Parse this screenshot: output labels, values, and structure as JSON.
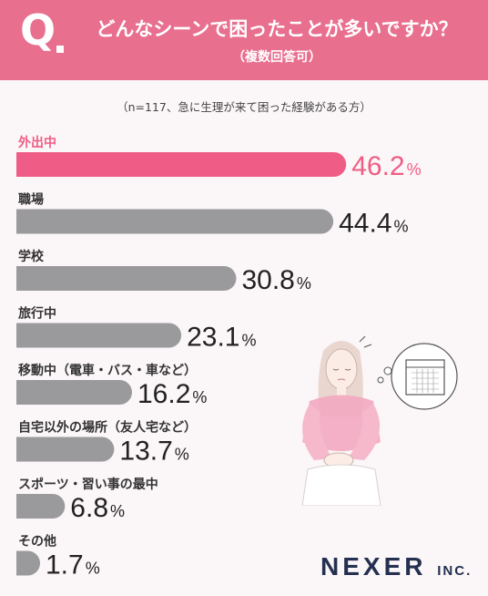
{
  "header": {
    "q_mark": "Q",
    "question": "どんなシーンで困ったことが多いですか？",
    "subtitle": "（複数回答可）"
  },
  "note": "（n=117、急に生理が来て困った経験がある方）",
  "brand": {
    "name": "NEXER",
    "suffix": "INC."
  },
  "colors": {
    "accent": "#ef5d86",
    "bar": "#9a9a9c",
    "header": "#e86f8e",
    "highlight_text": "#ef5d86"
  },
  "chart_data": {
    "type": "bar",
    "orientation": "horizontal",
    "categories": [
      "外出中",
      "職場",
      "学校",
      "旅行中",
      "移動中（電車・バス・車など）",
      "自宅以外の場所（友人宅など）",
      "スポーツ・習い事の最中",
      "その他"
    ],
    "values": [
      46.2,
      44.4,
      30.8,
      23.1,
      16.2,
      13.7,
      6.8,
      1.7
    ],
    "unit": "%",
    "highlight_index": 0,
    "xlim": [
      0,
      50
    ],
    "grid": false,
    "legend": "none"
  }
}
